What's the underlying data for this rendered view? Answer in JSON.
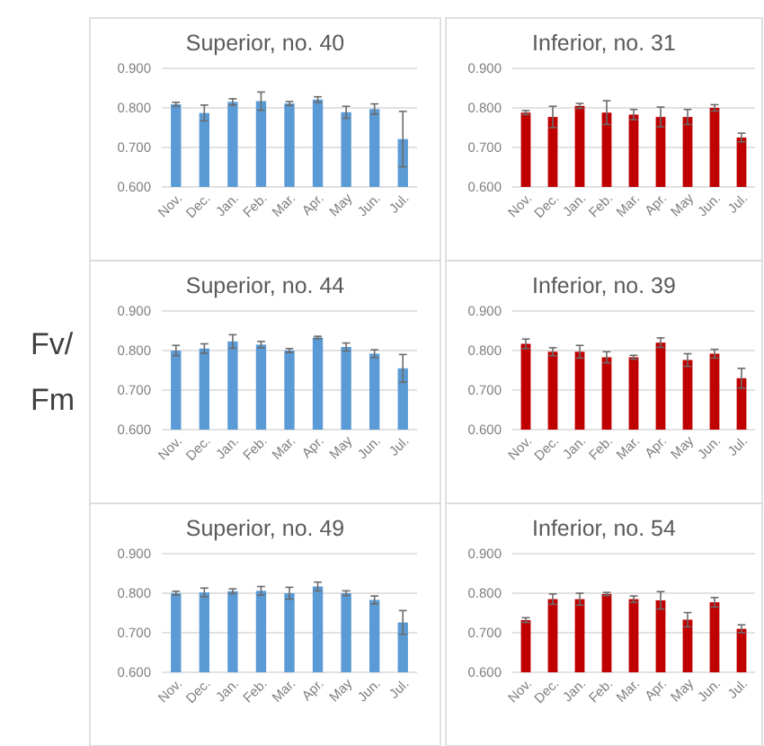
{
  "chart_data": [
    {
      "type": "bar",
      "title": "Superior, no. 40",
      "categories": [
        "Nov.",
        "Dec.",
        "Jan.",
        "Feb.",
        "Mar.",
        "Apr.",
        "May",
        "Jun.",
        "Jul."
      ],
      "values": [
        0.809,
        0.787,
        0.815,
        0.817,
        0.811,
        0.821,
        0.789,
        0.797,
        0.721
      ],
      "errors": [
        0.005,
        0.02,
        0.008,
        0.023,
        0.005,
        0.007,
        0.015,
        0.013,
        0.07
      ],
      "color": "#5b9bd5",
      "ylim": [
        0.6,
        0.9
      ],
      "yticks": [
        {
          "value": 0.6,
          "label": "0.600"
        },
        {
          "value": 0.7,
          "label": "0.700"
        },
        {
          "value": 0.8,
          "label": "0.800"
        },
        {
          "value": 0.9,
          "label": "0.900"
        }
      ],
      "grid": "y"
    },
    {
      "type": "bar",
      "title": "Inferior, no. 31",
      "categories": [
        "Nov.",
        "Dec.",
        "Jan.",
        "Feb.",
        "Mar.",
        "Apr.",
        "May",
        "Jun.",
        "Jul."
      ],
      "values": [
        0.788,
        0.777,
        0.805,
        0.788,
        0.783,
        0.777,
        0.777,
        0.8,
        0.725
      ],
      "errors": [
        0.005,
        0.027,
        0.006,
        0.03,
        0.013,
        0.025,
        0.019,
        0.008,
        0.011
      ],
      "color": "#c00000",
      "ylim": [
        0.6,
        0.9
      ],
      "yticks": [
        {
          "value": 0.6,
          "label": "0.600"
        },
        {
          "value": 0.7,
          "label": "0.700"
        },
        {
          "value": 0.8,
          "label": "0.800"
        },
        {
          "value": 0.9,
          "label": "0.900"
        }
      ],
      "grid": "y"
    },
    {
      "type": "bar",
      "title": "Superior, no. 44",
      "ylabel": "Fv/Fm",
      "categories": [
        "Nov.",
        "Dec.",
        "Jan.",
        "Feb.",
        "Mar.",
        "Apr.",
        "May",
        "Jun.",
        "Jul."
      ],
      "values": [
        0.8,
        0.805,
        0.823,
        0.815,
        0.8,
        0.833,
        0.809,
        0.792,
        0.755
      ],
      "errors": [
        0.013,
        0.012,
        0.017,
        0.008,
        0.005,
        0.003,
        0.01,
        0.01,
        0.035
      ],
      "color": "#5b9bd5",
      "ylim": [
        0.6,
        0.9
      ],
      "yticks": [
        {
          "value": 0.6,
          "label": "0.600"
        },
        {
          "value": 0.7,
          "label": "0.700"
        },
        {
          "value": 0.8,
          "label": "0.800"
        },
        {
          "value": 0.9,
          "label": "0.900"
        }
      ],
      "grid": "y"
    },
    {
      "type": "bar",
      "title": "Inferior, no. 39",
      "categories": [
        "Nov.",
        "Dec.",
        "Jan.",
        "Feb.",
        "Mar.",
        "Apr.",
        "May",
        "Jun.",
        "Jul."
      ],
      "values": [
        0.817,
        0.797,
        0.797,
        0.783,
        0.783,
        0.82,
        0.776,
        0.792,
        0.73
      ],
      "errors": [
        0.012,
        0.01,
        0.016,
        0.014,
        0.005,
        0.012,
        0.016,
        0.011,
        0.025
      ],
      "color": "#c00000",
      "ylim": [
        0.6,
        0.9
      ],
      "yticks": [
        {
          "value": 0.6,
          "label": "0.600"
        },
        {
          "value": 0.7,
          "label": "0.700"
        },
        {
          "value": 0.8,
          "label": "0.800"
        },
        {
          "value": 0.9,
          "label": "0.900"
        }
      ],
      "grid": "y"
    },
    {
      "type": "bar",
      "title": "Superior, no. 49",
      "categories": [
        "Nov.",
        "Dec.",
        "Jan.",
        "Feb.",
        "Mar.",
        "Apr.",
        "May",
        "Jun.",
        "Jul."
      ],
      "values": [
        0.8,
        0.802,
        0.805,
        0.806,
        0.8,
        0.817,
        0.8,
        0.783,
        0.726
      ],
      "errors": [
        0.005,
        0.011,
        0.006,
        0.011,
        0.015,
        0.011,
        0.006,
        0.01,
        0.03
      ],
      "color": "#5b9bd5",
      "ylim": [
        0.6,
        0.9
      ],
      "yticks": [
        {
          "value": 0.6,
          "label": "0.600"
        },
        {
          "value": 0.7,
          "label": "0.700"
        },
        {
          "value": 0.8,
          "label": "0.800"
        },
        {
          "value": 0.9,
          "label": "0.900"
        }
      ],
      "grid": "y"
    },
    {
      "type": "bar",
      "title": "Inferior, no. 54",
      "categories": [
        "Nov.",
        "Dec.",
        "Jan.",
        "Feb.",
        "Mar.",
        "Apr.",
        "May",
        "Jun.",
        "Jul."
      ],
      "values": [
        0.732,
        0.785,
        0.785,
        0.798,
        0.785,
        0.782,
        0.733,
        0.777,
        0.71
      ],
      "errors": [
        0.006,
        0.013,
        0.015,
        0.004,
        0.008,
        0.022,
        0.018,
        0.012,
        0.01
      ],
      "color": "#c00000",
      "ylim": [
        0.6,
        0.9
      ],
      "yticks": [
        {
          "value": 0.6,
          "label": "0.600"
        },
        {
          "value": 0.7,
          "label": "0.700"
        },
        {
          "value": 0.8,
          "label": "0.800"
        },
        {
          "value": 0.9,
          "label": "0.900"
        }
      ],
      "grid": "y"
    }
  ]
}
